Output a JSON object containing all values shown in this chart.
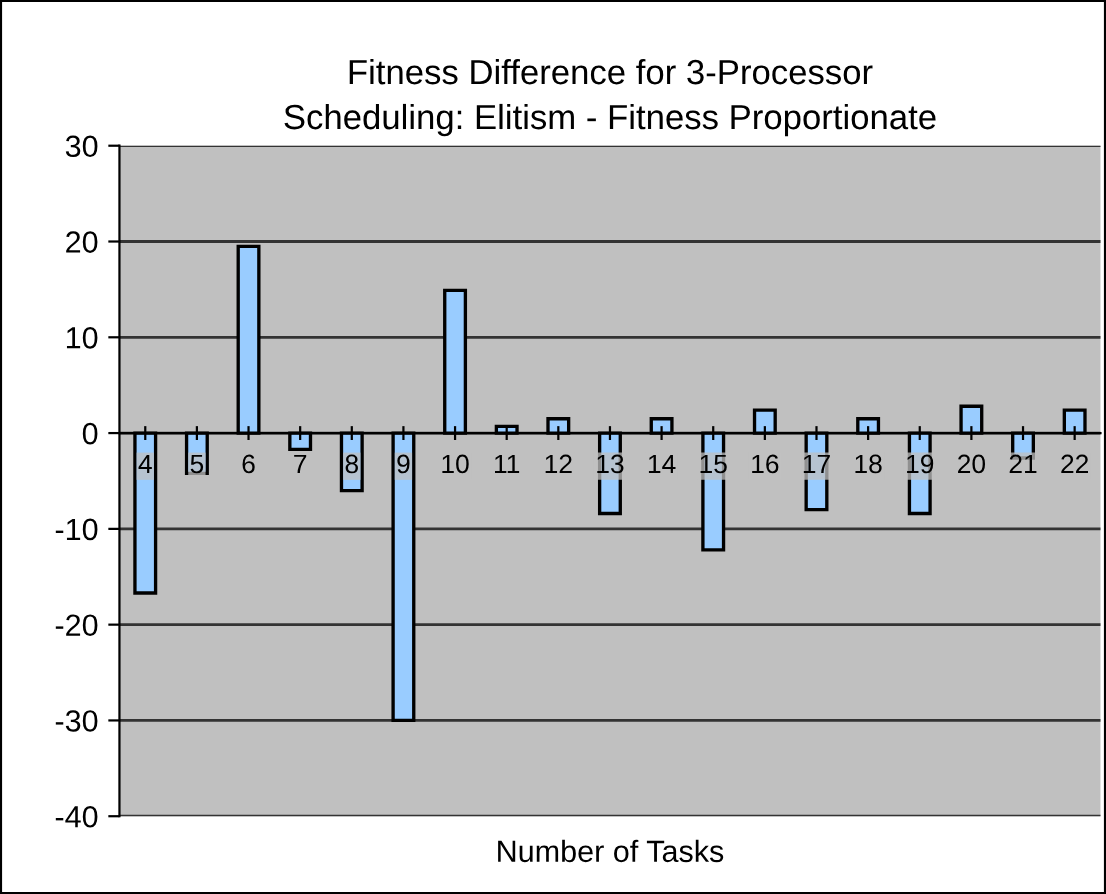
{
  "chart_data": {
    "type": "bar",
    "title": "Fitness Difference for 3-Processor\nScheduling: Elitism - Fitness Proportionate",
    "xlabel": "Number of Tasks",
    "categories": [
      "4",
      "5",
      "6",
      "7",
      "8",
      "9",
      "10",
      "11",
      "12",
      "13",
      "14",
      "15",
      "16",
      "17",
      "18",
      "19",
      "20",
      "21",
      "22"
    ],
    "values": [
      -16.7,
      -4.2,
      19.5,
      -1.7,
      -6.0,
      -30.0,
      14.9,
      0.7,
      1.5,
      -8.4,
      1.5,
      -12.2,
      2.4,
      -8.0,
      1.5,
      -8.4,
      2.8,
      -2.6,
      2.4
    ],
    "color": "#99ccff",
    "ylim": [
      -40,
      30
    ],
    "yticks": [
      -40,
      -30,
      -20,
      -10,
      0,
      10,
      20,
      30
    ],
    "grid": "y",
    "legend": false
  }
}
